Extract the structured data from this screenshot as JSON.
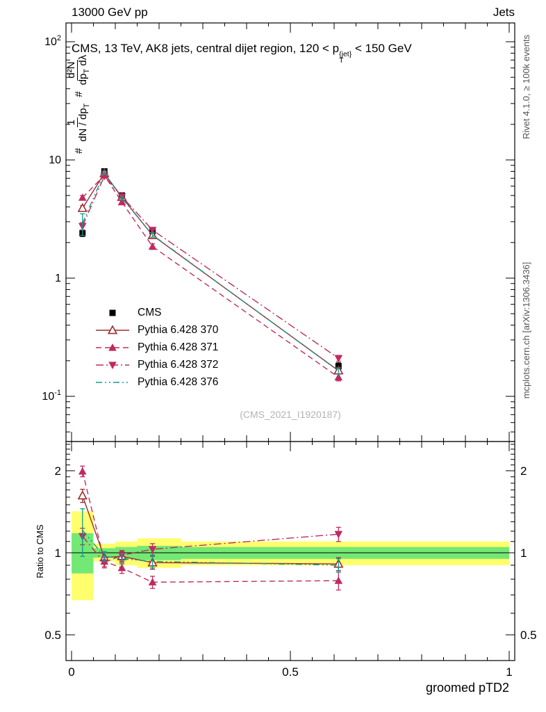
{
  "header": {
    "left_title": "13000 GeV pp",
    "right_title": "Jets"
  },
  "plot_title": {
    "prefix": "CMS, 13 TeV, AK8 jets, central dijet region, 120 < p",
    "sup": "{jet}",
    "sub": "T",
    "suffix": " < 150 GeV"
  },
  "watermark": "(CMS_2021_I1920187)",
  "side_notes": {
    "rivet": "Rivet 4.1.0, ≥ 100k events",
    "mcplots": "mcplots.cern.ch [arXiv:1306.3436]"
  },
  "y_axis_label": {
    "hash1": "#",
    "num1": "1",
    "den1": "dN / dp",
    "den1_sub": "T",
    "hash2": "#",
    "num2": "d²N",
    "den2_head": "dp",
    "den2_sub": "T",
    "den2_tail": " dλ"
  },
  "chart_data": {
    "type": "line",
    "x_title": "groomed pTD2",
    "ratio_title": "Ratio to CMS",
    "xlim": [
      -0.013,
      1.013
    ],
    "x": [
      0.025,
      0.075,
      0.115,
      0.185,
      0.61
    ],
    "x_ticks": [
      {
        "v": 0,
        "label": "0"
      },
      {
        "v": 0.5,
        "label": "0.5"
      },
      {
        "v": 1,
        "label": "1"
      }
    ],
    "main": {
      "ylog": true,
      "ylim": [
        0.0415,
        144
      ],
      "y_ticks": [
        {
          "v": 100,
          "base": "10",
          "exp": "2"
        },
        {
          "v": 10,
          "base": "10"
        },
        {
          "v": 1,
          "base": "1"
        },
        {
          "v": 0.1,
          "base": "10",
          "exp": "-1"
        }
      ]
    },
    "ratio": {
      "ylog": true,
      "ylim": [
        0.403,
        2.56
      ],
      "reference": 1,
      "y_ticks": [
        {
          "v": 2,
          "base": "2"
        },
        {
          "v": 1,
          "base": "1"
        },
        {
          "v": 0.5,
          "base": "0.5"
        }
      ],
      "bands": [
        {
          "x": [
            0.0,
            0.05
          ],
          "yellow": [
            0.67,
            1.42
          ],
          "green": [
            0.84,
            1.18
          ]
        },
        {
          "x": [
            0.05,
            0.1
          ],
          "yellow": [
            0.93,
            1.08
          ],
          "green": [
            0.96,
            1.04
          ]
        },
        {
          "x": [
            0.1,
            0.15
          ],
          "yellow": [
            0.9,
            1.1
          ],
          "green": [
            0.95,
            1.05
          ]
        },
        {
          "x": [
            0.15,
            0.25
          ],
          "yellow": [
            0.88,
            1.13
          ],
          "green": [
            0.94,
            1.06
          ]
        },
        {
          "x": [
            0.25,
            1.0
          ],
          "yellow": [
            0.9,
            1.1
          ],
          "green": [
            0.95,
            1.05
          ]
        }
      ]
    },
    "band_colors": {
      "yellow": "#ffff6e",
      "green": "#74e874"
    },
    "series": [
      {
        "name": "CMS",
        "color": "#000000",
        "marker": "square",
        "line": "none",
        "values": [
          2.4,
          8.0,
          5.0,
          2.5,
          0.18
        ],
        "errors": [
          0.15,
          0.3,
          0.2,
          0.12,
          0.012
        ],
        "ratio": null,
        "ratio_errors": null
      },
      {
        "name": "Pythia 6.428 370",
        "color": "#9e2b2b",
        "marker": "triangle-open",
        "line": "solid",
        "values": [
          3.9,
          7.7,
          4.85,
          2.3,
          0.165
        ],
        "errors": [
          0.2,
          0.25,
          0.15,
          0.1,
          0.01
        ],
        "ratio": [
          1.62,
          0.96,
          0.97,
          0.92,
          0.91
        ],
        "ratio_errors": [
          0.09,
          0.04,
          0.04,
          0.05,
          0.05
        ]
      },
      {
        "name": "Pythia 6.428 371",
        "color": "#bf2a60",
        "marker": "triangle-up",
        "line": "dashed",
        "values": [
          4.8,
          7.4,
          4.4,
          1.85,
          0.145
        ],
        "errors": [
          0.2,
          0.25,
          0.15,
          0.1,
          0.01
        ],
        "ratio": [
          1.99,
          0.93,
          0.88,
          0.78,
          0.79
        ],
        "ratio_errors": [
          0.09,
          0.04,
          0.04,
          0.04,
          0.06
        ]
      },
      {
        "name": "Pythia 6.428 372",
        "color": "#bf2a60",
        "marker": "triangle-down",
        "line": "dashdot",
        "values": [
          2.75,
          7.3,
          4.9,
          2.55,
          0.21
        ],
        "errors": [
          0.2,
          0.25,
          0.15,
          0.12,
          0.012
        ],
        "ratio": [
          1.15,
          0.92,
          0.98,
          1.03,
          1.17
        ],
        "ratio_errors": [
          0.08,
          0.04,
          0.04,
          0.05,
          0.07
        ]
      },
      {
        "name": "Pythia 6.428 376",
        "color": "#0e9b8c",
        "marker": "none",
        "line": "dashdotdot",
        "values": [
          2.9,
          7.8,
          4.75,
          2.32,
          0.164
        ],
        "errors": [
          0.6,
          0.25,
          0.15,
          0.1,
          0.01
        ],
        "ratio": [
          1.21,
          0.97,
          0.95,
          0.93,
          0.9
        ],
        "ratio_errors": [
          0.24,
          0.04,
          0.04,
          0.05,
          0.05
        ]
      }
    ]
  }
}
